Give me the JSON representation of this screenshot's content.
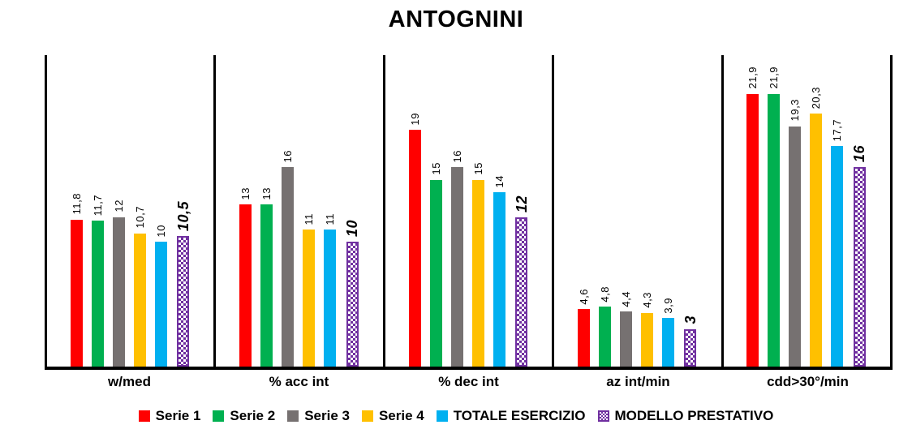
{
  "title": "ANTOGNINI",
  "chart_data": {
    "type": "bar",
    "title": "ANTOGNINI",
    "categories": [
      "w/med",
      "% acc int",
      "% dec int",
      "az int/min",
      "cdd>30°/min"
    ],
    "series": [
      {
        "name": "Serie 1",
        "color": "#FF0000",
        "pattern": "solid",
        "emphasis": false,
        "values": [
          11.8,
          13,
          19,
          4.6,
          21.9
        ],
        "value_labels": [
          "11,8",
          "13",
          "19",
          "4,6",
          "21,9"
        ]
      },
      {
        "name": "Serie 2",
        "color": "#00B050",
        "pattern": "solid",
        "emphasis": false,
        "values": [
          11.7,
          13,
          15,
          4.8,
          21.9
        ],
        "value_labels": [
          "11,7",
          "13",
          "15",
          "4,8",
          "21,9"
        ]
      },
      {
        "name": "Serie 3",
        "color": "#767171",
        "pattern": "solid",
        "emphasis": false,
        "values": [
          12,
          16,
          16,
          4.4,
          19.3
        ],
        "value_labels": [
          "12",
          "16",
          "16",
          "4,4",
          "19,3"
        ]
      },
      {
        "name": "Serie 4",
        "color": "#FFC000",
        "pattern": "solid",
        "emphasis": false,
        "values": [
          10.7,
          11,
          15,
          4.3,
          20.3
        ],
        "value_labels": [
          "10,7",
          "11",
          "15",
          "4,3",
          "20,3"
        ]
      },
      {
        "name": "TOTALE ESERCIZIO",
        "color": "#00B0F0",
        "pattern": "solid",
        "emphasis": false,
        "values": [
          10,
          11,
          14,
          3.9,
          17.7
        ],
        "value_labels": [
          "10",
          "11",
          "14",
          "3,9",
          "17,7"
        ]
      },
      {
        "name": "MODELLO PRESTATIVO",
        "color": "#7030A0",
        "pattern": "checker",
        "emphasis": true,
        "values": [
          10.5,
          10,
          12,
          3,
          16
        ],
        "value_labels": [
          "10,5",
          "10",
          "12",
          "3",
          "16"
        ]
      }
    ],
    "ylim": [
      0,
      25
    ],
    "grid": false,
    "y_axis_labels_visible": false,
    "legend_position": "bottom",
    "value_label_rotation_deg": 90,
    "decimal_separator": ","
  }
}
